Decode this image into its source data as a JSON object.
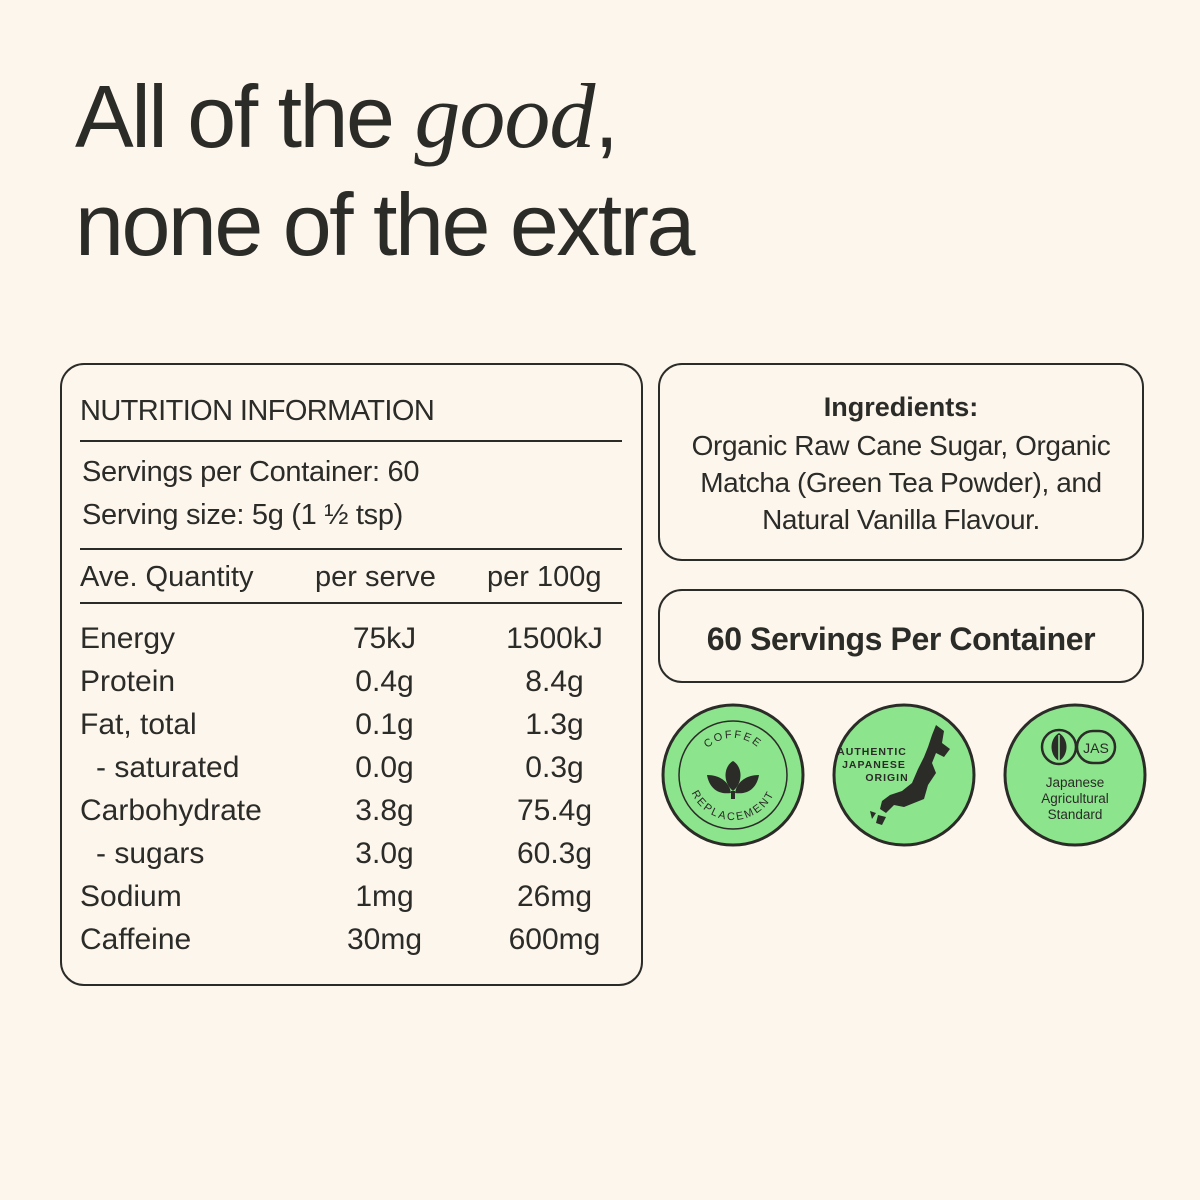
{
  "headline": {
    "line1_before": "All of the ",
    "line1_em": "good",
    "line1_after": ",",
    "line2": "none of the extra"
  },
  "nutrition": {
    "title": "NUTRITION INFORMATION",
    "servings_per_container": "Servings per Container: 60",
    "serving_size": "Serving size: 5g (1 ½ tsp)",
    "headers": [
      "Ave. Quantity",
      "per serve",
      "per 100g"
    ],
    "rows": [
      {
        "name": "Energy",
        "per_serve": "75kJ",
        "per_100g": "1500kJ"
      },
      {
        "name": "Protein",
        "per_serve": "0.4g",
        "per_100g": "8.4g"
      },
      {
        "name": "Fat, total",
        "per_serve": "0.1g",
        "per_100g": "1.3g"
      },
      {
        "name": "- saturated",
        "per_serve": "0.0g",
        "per_100g": "0.3g"
      },
      {
        "name": "Carbohydrate",
        "per_serve": "3.8g",
        "per_100g": "75.4g"
      },
      {
        "name": "- sugars",
        "per_serve": "3.0g",
        "per_100g": "60.3g"
      },
      {
        "name": "Sodium",
        "per_serve": "1mg",
        "per_100g": "26mg"
      },
      {
        "name": "Caffeine",
        "per_serve": "30mg",
        "per_100g": "600mg"
      }
    ]
  },
  "ingredients": {
    "heading": "Ingredients:",
    "text": "Organic Raw Cane Sugar,  Organic Matcha (Green Tea Powder), and Natural Vanilla Flavour."
  },
  "servings_banner": "60 Servings Per Container",
  "badges": {
    "coffee": {
      "top": "COFFEE",
      "bottom": "REPLACEMENT",
      "icon": "leaves-icon"
    },
    "origin": {
      "line1": "AUTHENTIC",
      "line2": "JAPANESE",
      "line3": "ORIGIN",
      "icon": "japan-map-icon"
    },
    "jas": {
      "mark": "JAS",
      "line1": "Japanese",
      "line2": "Agricultural",
      "line3": "Standard",
      "icon": "jas-leaf-icon"
    }
  },
  "colors": {
    "background": "#fdf6ed",
    "text": "#2b2b28",
    "badge_green": "#8ce48c"
  }
}
